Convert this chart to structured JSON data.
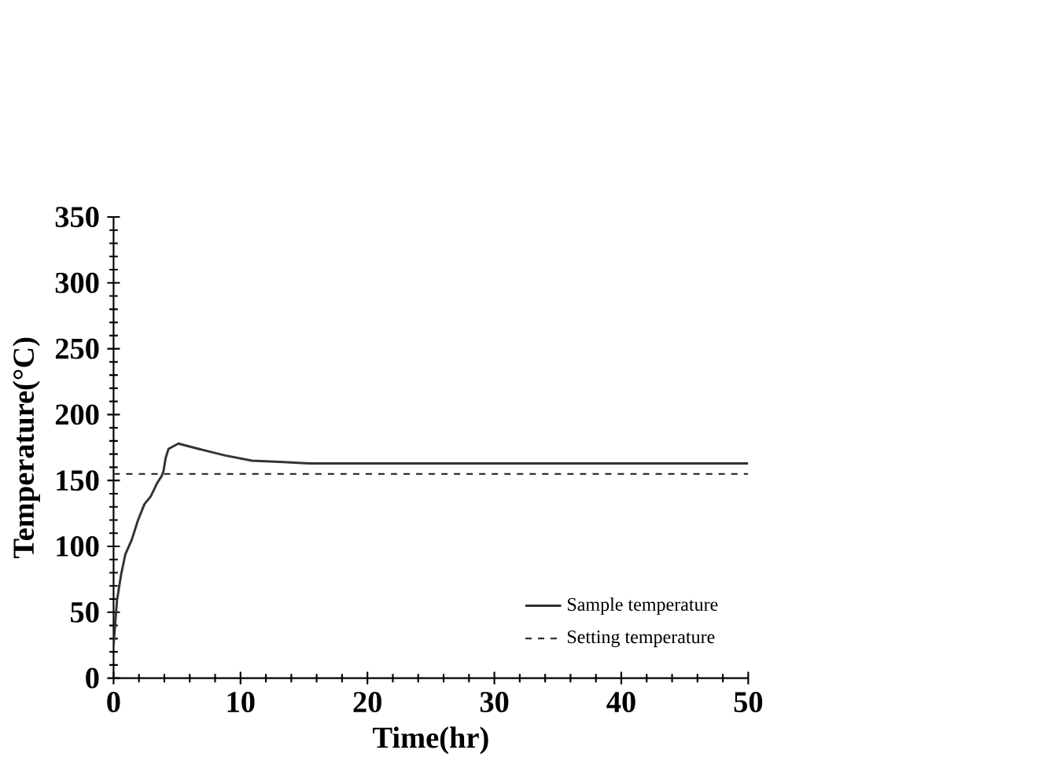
{
  "chart_data": {
    "type": "line",
    "xlabel": "Time(hr)",
    "ylabel": "Temperature(°C)",
    "x": [
      0,
      0.27,
      0.6,
      0.93,
      1.43,
      1.93,
      2.43,
      2.93,
      3.43,
      3.77,
      3.93,
      4.1,
      4.33,
      5.1,
      7.1,
      8.8,
      10.9,
      13.4,
      15.4,
      50
    ],
    "series": [
      {
        "name": "Sample temperature",
        "color": "#333333",
        "values": [
          25,
          59,
          79,
          94,
          105,
          120,
          132,
          138,
          148,
          153,
          157,
          167,
          174,
          178,
          173,
          169,
          165,
          164,
          163,
          163
        ]
      }
    ],
    "ref_lines": [
      {
        "axis": "y",
        "value": 155,
        "label": "Setting temperature",
        "color": "#333333",
        "line_style": "dashed"
      }
    ],
    "xlim": [
      0,
      50
    ],
    "ylim": [
      0,
      350
    ],
    "xticks": [
      0,
      10,
      20,
      30,
      40,
      50
    ],
    "yticks": [
      0,
      50,
      100,
      150,
      200,
      250,
      300,
      350
    ],
    "grid": false,
    "legend": "bottom right",
    "marker": "none",
    "line_style": "solid"
  }
}
